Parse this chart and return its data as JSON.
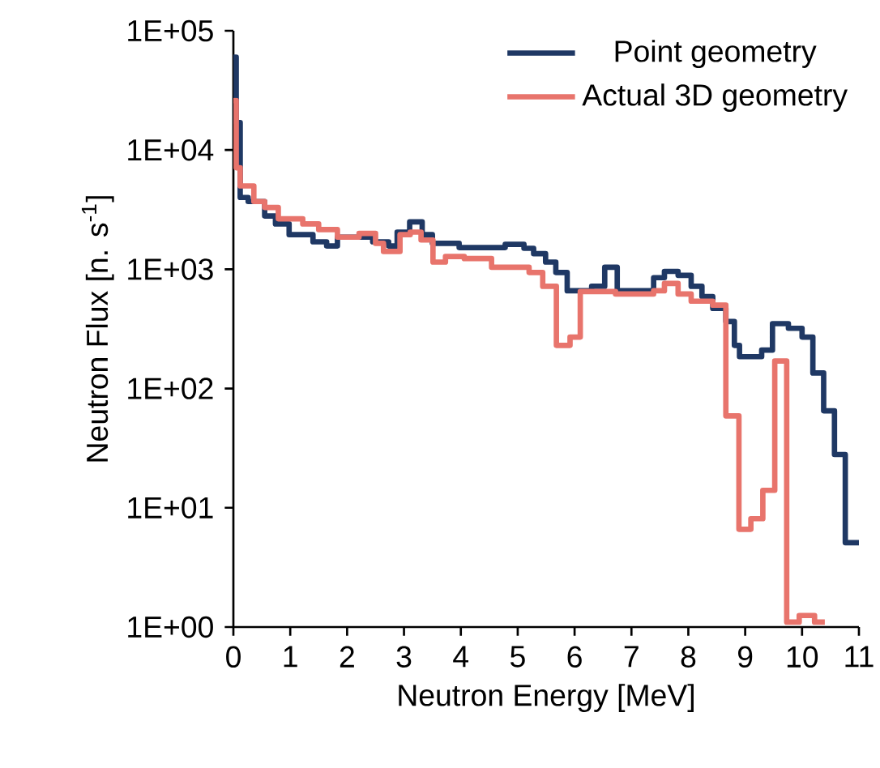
{
  "chart_data": {
    "type": "step",
    "xlabel": "Neutron Energy [MeV]",
    "ylabel": "Neutron Flux [n. s$^{-1}$]",
    "log": "y",
    "legend": "top right",
    "grid": false,
    "marker": "none",
    "line_style": "solid",
    "xlim": [
      0,
      11
    ],
    "xticks": [
      0,
      1,
      2,
      3,
      4,
      5,
      6,
      7,
      8,
      9,
      10,
      11
    ],
    "ylim": [
      1,
      100000
    ],
    "yticks": [
      {
        "value": 1,
        "label": "1E+00"
      },
      {
        "value": 10,
        "label": "1E+01"
      },
      {
        "value": 100,
        "label": "1E+02"
      },
      {
        "value": 1000,
        "label": "1E+03"
      },
      {
        "value": 10000,
        "label": "1E+04"
      },
      {
        "value": 100000,
        "label": "1E+05"
      }
    ],
    "series": [
      {
        "name": "Point geometry",
        "color": "#1f3864",
        "x": [
          0,
          0.05,
          0.12,
          0.26,
          0.55,
          0.74,
          0.98,
          1.4,
          1.64,
          1.83,
          2.45,
          2.73,
          2.88,
          3.1,
          3.32,
          3.5,
          3.97,
          4.78,
          5.11,
          5.28,
          5.49,
          5.67,
          5.87,
          6.1,
          6.3,
          6.53,
          6.75,
          7.39,
          7.58,
          7.82,
          8.05,
          8.24,
          8.43,
          8.66,
          8.81,
          8.9,
          9.29,
          9.48,
          9.76,
          10.0,
          10.19,
          10.38,
          10.57,
          10.76,
          11.0
        ],
        "values": [
          60000,
          17000,
          4000,
          3700,
          2800,
          2400,
          1950,
          1700,
          1570,
          1860,
          1700,
          1570,
          2050,
          2500,
          1950,
          1650,
          1520,
          1620,
          1500,
          1350,
          1150,
          940,
          660,
          660,
          720,
          1040,
          660,
          850,
          960,
          890,
          720,
          590,
          470,
          365,
          230,
          185,
          210,
          350,
          320,
          270,
          135,
          65,
          28,
          5.1,
          5.1
        ]
      },
      {
        "name": "Actual 3D geometry",
        "color": "#e8746c",
        "x": [
          0,
          0.05,
          0.12,
          0.36,
          0.55,
          0.79,
          1.22,
          1.5,
          1.83,
          2.21,
          2.5,
          2.64,
          2.93,
          3.11,
          3.3,
          3.51,
          3.73,
          4.06,
          4.54,
          5.2,
          5.44,
          5.68,
          5.92,
          6.1,
          6.72,
          7.39,
          7.58,
          7.82,
          8.05,
          8.43,
          8.66,
          8.89,
          9.1,
          9.31,
          9.52,
          9.73,
          9.95,
          10.22,
          10.4
        ],
        "values": [
          26000,
          7100,
          5000,
          3700,
          3300,
          2650,
          2400,
          2150,
          1860,
          2000,
          1650,
          1410,
          1950,
          2050,
          1760,
          1150,
          1280,
          1230,
          1040,
          940,
          720,
          230,
          270,
          650,
          620,
          660,
          760,
          620,
          540,
          500,
          59,
          6.6,
          8.1,
          14,
          170,
          1.1,
          1.25,
          1.1,
          1.1
        ]
      }
    ]
  }
}
